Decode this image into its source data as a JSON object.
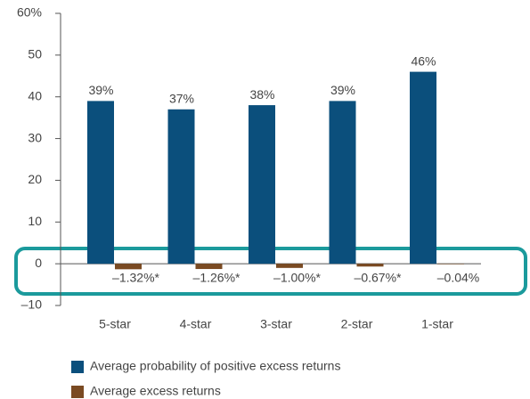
{
  "chart_data": {
    "type": "bar",
    "categories": [
      "5-star",
      "4-star",
      "3-star",
      "2-star",
      "1-star"
    ],
    "series": [
      {
        "name": "Average probability of positive excess returns",
        "color": "#0b4f7c",
        "values": [
          39,
          37,
          38,
          39,
          46
        ],
        "value_labels": [
          "39%",
          "37%",
          "38%",
          "39%",
          "46%"
        ]
      },
      {
        "name": "Average excess returns",
        "color": "#7a4a22",
        "values": [
          -1.32,
          -1.26,
          -1.0,
          -0.67,
          -0.04
        ],
        "value_labels": [
          "–1.32%*",
          "–1.26%*",
          "–1.00%*",
          "–0.67%*",
          "–0.04%"
        ]
      }
    ],
    "ylim": [
      -10,
      60
    ],
    "yticks": [
      {
        "value": -10,
        "label": "–10"
      },
      0,
      10,
      20,
      30,
      40,
      50,
      {
        "value": 60,
        "label": "60%"
      }
    ]
  }
}
